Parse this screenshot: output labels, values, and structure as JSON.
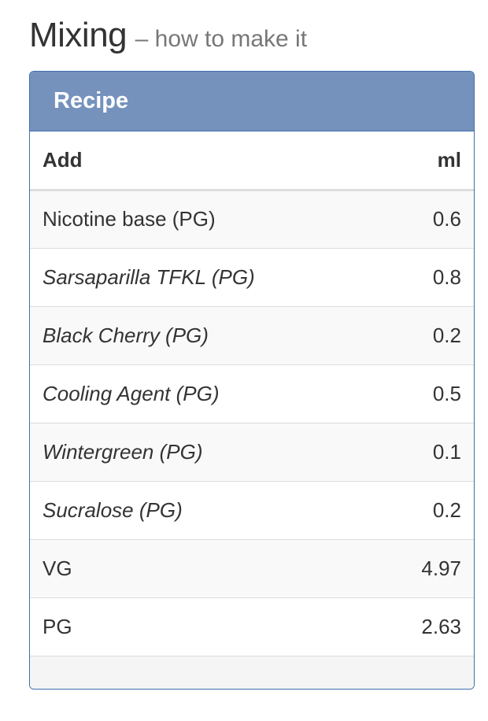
{
  "heading": {
    "title": "Mixing",
    "subtitle": "– how to make it"
  },
  "recipe": {
    "panel_title": "Recipe",
    "columns": [
      "Add",
      "ml"
    ],
    "rows": [
      {
        "ingredient": "Nicotine base (PG)",
        "ml": "0.6",
        "italic": false
      },
      {
        "ingredient": "Sarsaparilla TFKL (PG)",
        "ml": "0.8",
        "italic": true
      },
      {
        "ingredient": "Black Cherry (PG)",
        "ml": "0.2",
        "italic": true
      },
      {
        "ingredient": "Cooling Agent (PG)",
        "ml": "0.5",
        "italic": true
      },
      {
        "ingredient": "Wintergreen (PG)",
        "ml": "0.1",
        "italic": true
      },
      {
        "ingredient": "Sucralose (PG)",
        "ml": "0.2",
        "italic": true
      },
      {
        "ingredient": "VG",
        "ml": "4.97",
        "italic": false
      },
      {
        "ingredient": "PG",
        "ml": "2.63",
        "italic": false
      }
    ]
  },
  "colors": {
    "panel_header": "#7592bd",
    "panel_border": "#3f6fae"
  }
}
